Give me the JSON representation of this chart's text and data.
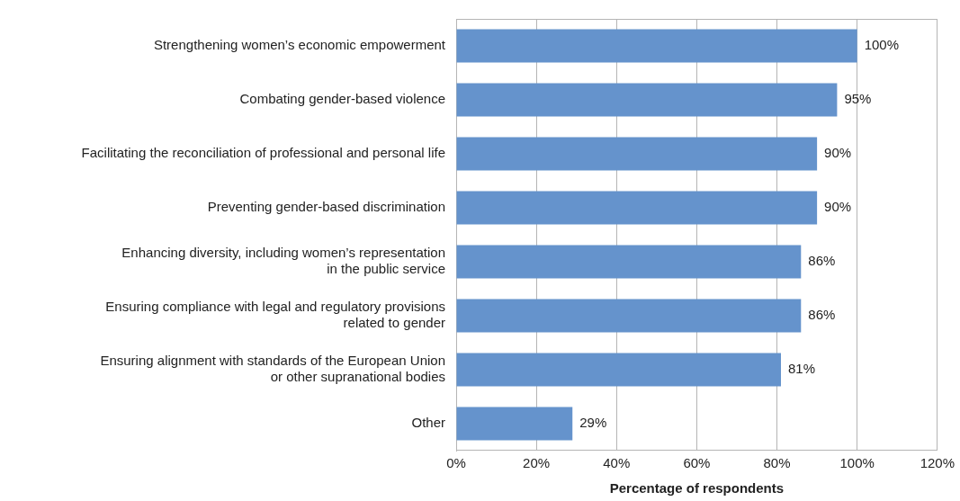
{
  "chart_data": {
    "type": "bar",
    "orientation": "horizontal",
    "xlabel": "Percentage of respondents",
    "categories": [
      "Strengthening women’s economic empowerment",
      "Combating gender-based violence",
      "Facilitating the reconciliation of professional and personal life",
      "Preventing gender-based discrimination",
      "Enhancing diversity, including women’s representation\nin the public service",
      "Ensuring compliance with legal and regulatory provisions\nrelated to gender",
      "Ensuring alignment with standards of the European Union\nor other supranational bodies",
      "Other"
    ],
    "values": [
      100,
      95,
      90,
      90,
      86,
      86,
      81,
      29
    ],
    "value_labels": [
      "100%",
      "95%",
      "90%",
      "90%",
      "86%",
      "86%",
      "81%",
      "29%"
    ],
    "color": "#6593cc",
    "xlim": [
      0,
      120
    ],
    "xticks": [
      {
        "value": 0,
        "label": "0%"
      },
      {
        "value": 20,
        "label": "20%"
      },
      {
        "value": 40,
        "label": "40%"
      },
      {
        "value": 60,
        "label": "60%"
      },
      {
        "value": 80,
        "label": "80%"
      },
      {
        "value": 100,
        "label": "100%"
      },
      {
        "value": 120,
        "label": "120%"
      }
    ],
    "grid": "x",
    "legend": false
  }
}
